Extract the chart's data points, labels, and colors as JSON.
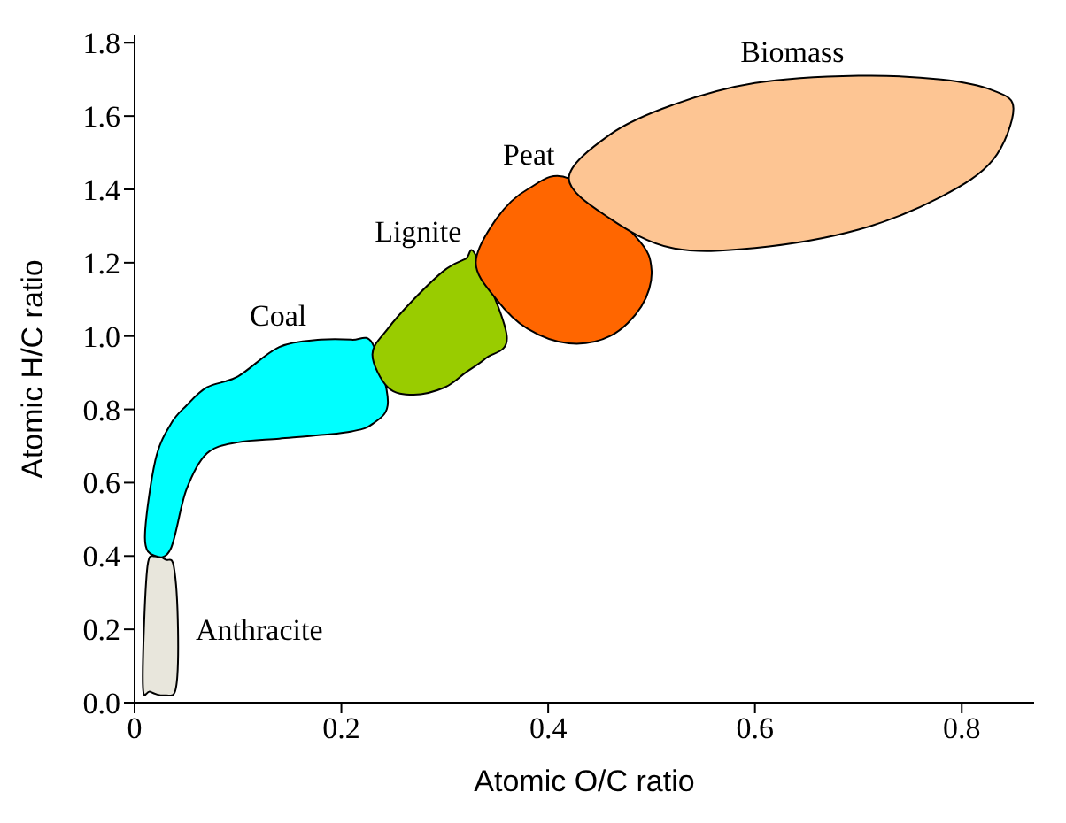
{
  "chart_data": {
    "type": "area",
    "xlabel": "Atomic O/C ratio",
    "ylabel": "Atomic H/C ratio",
    "xlim": [
      0,
      0.87
    ],
    "xticks": [
      0,
      0.2,
      0.4,
      0.6,
      0.8
    ],
    "ylim": [
      0,
      1.82
    ],
    "yticks": [
      {
        "value": 0,
        "label": "0.0"
      },
      {
        "value": 0.2,
        "label": "0.2"
      },
      {
        "value": 0.4,
        "label": "0.4"
      },
      {
        "value": 0.6,
        "label": "0.6"
      },
      {
        "value": 0.8,
        "label": "0.8"
      },
      {
        "value": 1,
        "label": "1.0"
      },
      {
        "value": 1.2,
        "label": "1.2"
      },
      {
        "value": 1.4,
        "label": "1.4"
      },
      {
        "value": 1.6,
        "label": "1.6"
      },
      {
        "value": 1.8,
        "label": "1.8"
      }
    ],
    "grid": false,
    "series": [
      {
        "name": "Anthracite",
        "color": "#e8e6dc",
        "x": [
          0.008,
          0.012,
          0.02,
          0.03,
          0.038,
          0.042,
          0.04,
          0.03,
          0.015
        ],
        "values": [
          0.05,
          0.36,
          0.4,
          0.39,
          0.37,
          0.2,
          0.04,
          0.02,
          0.03
        ]
      },
      {
        "name": "Coal",
        "color": "#00ffff",
        "x": [
          0.01,
          0.02,
          0.035,
          0.05,
          0.07,
          0.1,
          0.14,
          0.18,
          0.21,
          0.23,
          0.245,
          0.23,
          0.21,
          0.18,
          0.14,
          0.1,
          0.07,
          0.05,
          0.035,
          0.02
        ],
        "values": [
          0.45,
          0.66,
          0.76,
          0.81,
          0.86,
          0.89,
          0.97,
          0.99,
          0.99,
          0.98,
          0.82,
          0.76,
          0.74,
          0.73,
          0.72,
          0.71,
          0.68,
          0.58,
          0.42,
          0.4
        ]
      },
      {
        "name": "Lignite",
        "color": "#99cc00",
        "x": [
          0.23,
          0.245,
          0.27,
          0.3,
          0.32,
          0.33,
          0.36,
          0.34,
          0.32,
          0.3,
          0.27,
          0.245
        ],
        "values": [
          0.95,
          1.02,
          1.1,
          1.18,
          1.21,
          1.22,
          1.0,
          0.94,
          0.9,
          0.86,
          0.84,
          0.86
        ]
      },
      {
        "name": "Peat",
        "color": "#ff6600",
        "x": [
          0.33,
          0.35,
          0.38,
          0.42,
          0.485,
          0.5,
          0.49,
          0.46,
          0.42,
          0.38,
          0.35
        ],
        "values": [
          1.2,
          1.32,
          1.4,
          1.43,
          1.27,
          1.18,
          1.08,
          1.0,
          0.98,
          1.02,
          1.1
        ]
      },
      {
        "name": "Biomass",
        "color": "#fdc593",
        "x": [
          0.42,
          0.46,
          0.52,
          0.6,
          0.7,
          0.78,
          0.83,
          0.85,
          0.83,
          0.78,
          0.7,
          0.6,
          0.52,
          0.46
        ],
        "values": [
          1.43,
          1.55,
          1.63,
          1.69,
          1.71,
          1.7,
          1.67,
          1.62,
          1.48,
          1.38,
          1.29,
          1.24,
          1.24,
          1.32
        ]
      }
    ]
  }
}
